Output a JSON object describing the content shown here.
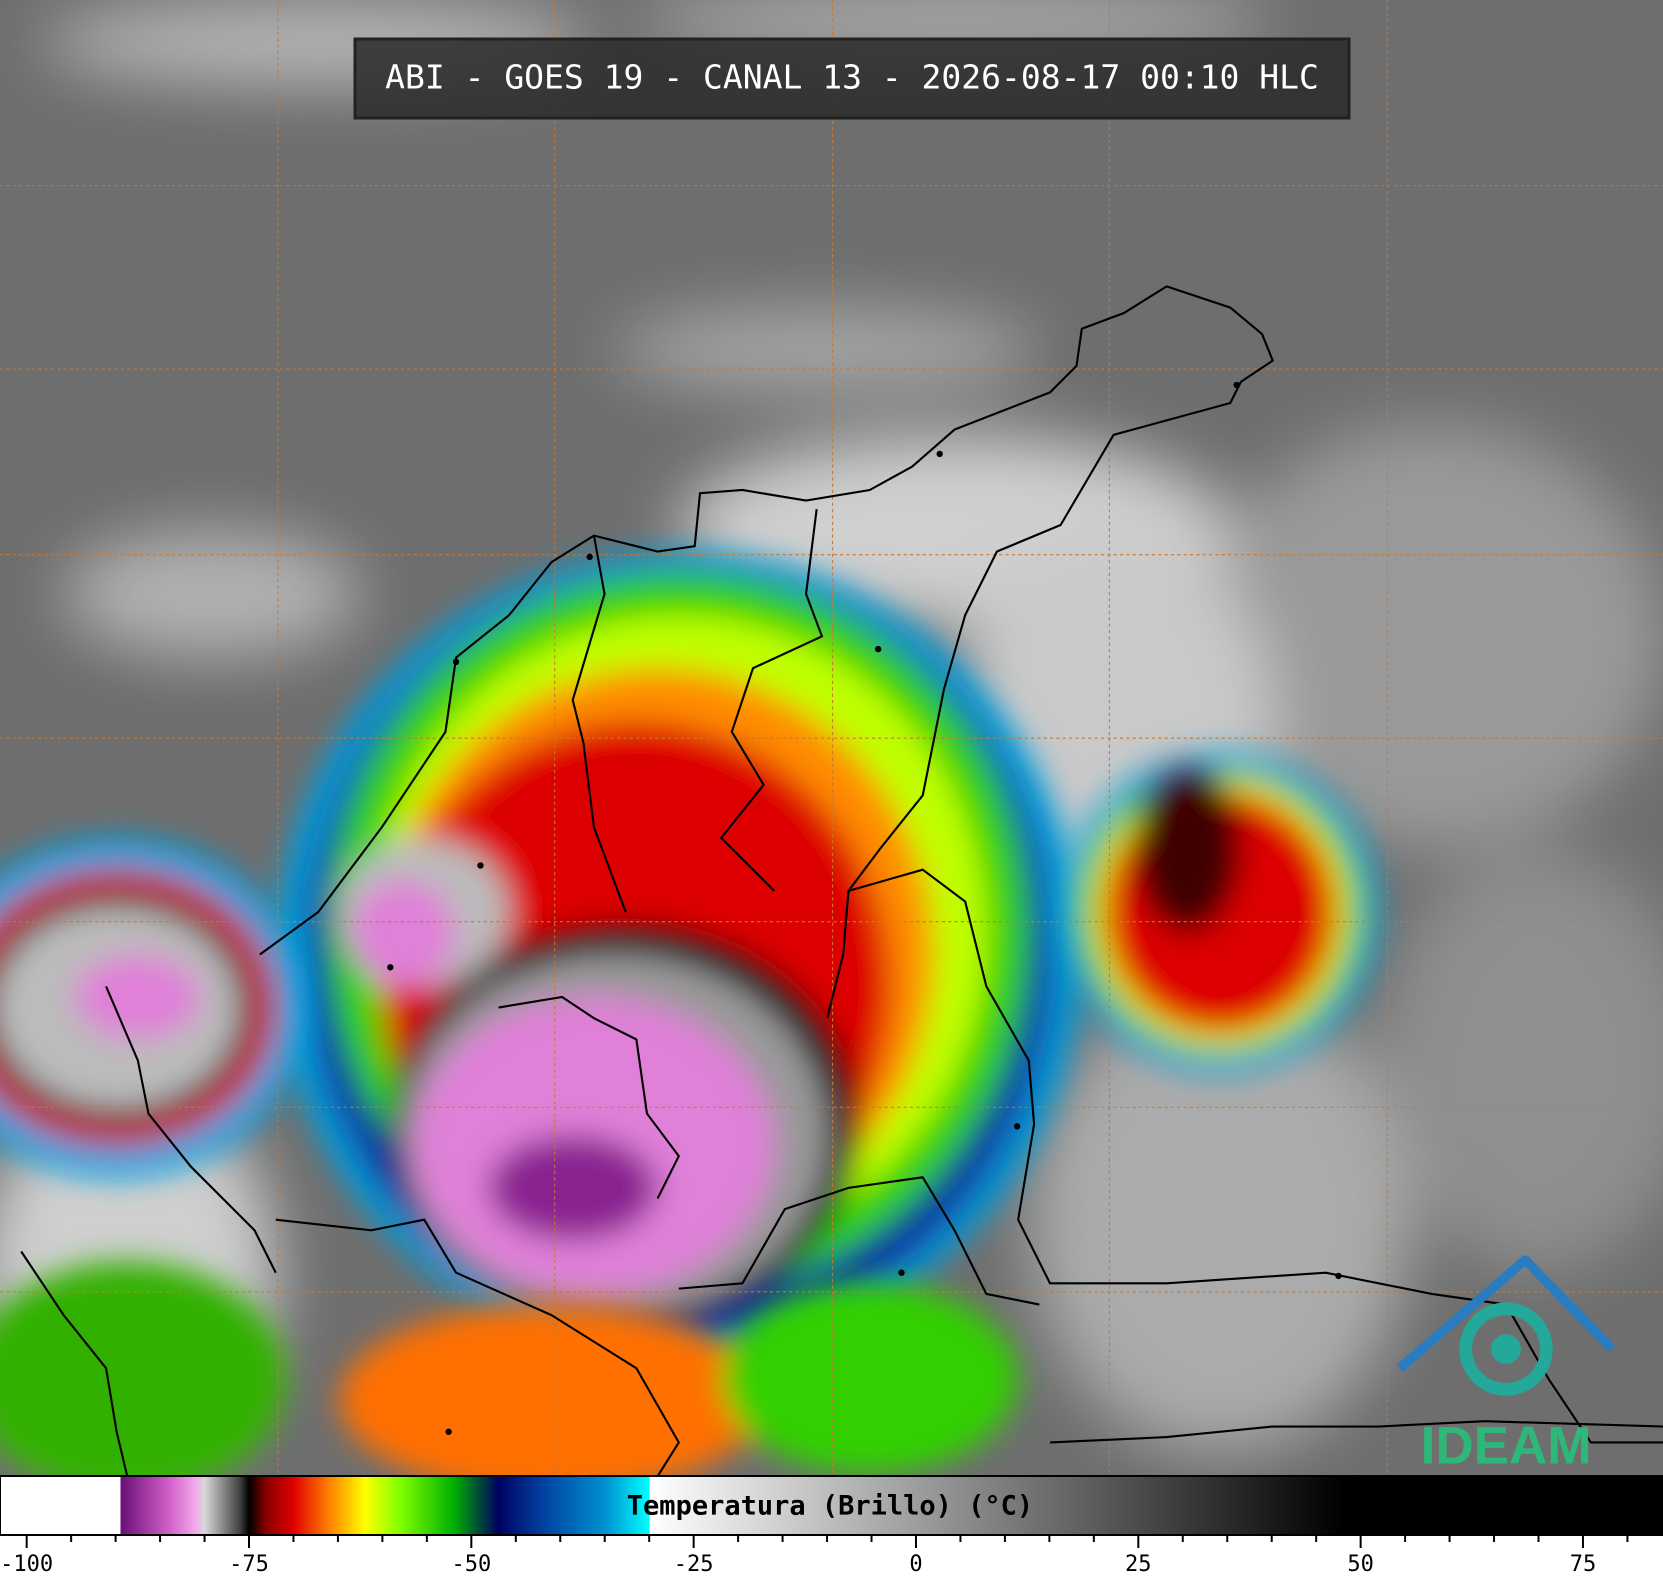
{
  "header": {
    "title": "ABI - GOES 19 - CANAL 13 - 2026-08-17 00:10 HLC"
  },
  "logo": {
    "text": "IDEAM"
  },
  "colorbar": {
    "label": "Temperatura (Brillo) (°C)",
    "lim": [
      -103,
      84
    ],
    "ticks": [
      -100,
      -75,
      -50,
      -25,
      0,
      25,
      50,
      75
    ],
    "minor_ticks": [
      -95,
      -90,
      -85,
      -80,
      -70,
      -65,
      -60,
      -55,
      -45,
      -40,
      -35,
      -30,
      -20,
      -15,
      -10,
      -5,
      5,
      10,
      15,
      20,
      30,
      35,
      40,
      45,
      55,
      60,
      65,
      70,
      80
    ],
    "stops": [
      {
        "value": -103,
        "color": "#ffffff"
      },
      {
        "value": -89.5,
        "color": "#ffffff"
      },
      {
        "value": -89.4,
        "color": "#6a1078"
      },
      {
        "value": -84,
        "color": "#d060c8"
      },
      {
        "value": -81,
        "color": "#f4a8ec"
      },
      {
        "value": -80,
        "color": "#d8d8d8"
      },
      {
        "value": -76,
        "color": "#404040"
      },
      {
        "value": -75,
        "color": "#000000"
      },
      {
        "value": -73,
        "color": "#8b0000"
      },
      {
        "value": -70,
        "color": "#e00000"
      },
      {
        "value": -66,
        "color": "#ff8000"
      },
      {
        "value": -62,
        "color": "#ffff00"
      },
      {
        "value": -58,
        "color": "#80ff00"
      },
      {
        "value": -52,
        "color": "#00b000"
      },
      {
        "value": -47,
        "color": "#000060"
      },
      {
        "value": -42,
        "color": "#0040a0"
      },
      {
        "value": -35,
        "color": "#0090d0"
      },
      {
        "value": -30,
        "color": "#00ffff"
      },
      {
        "value": -29.9,
        "color": "#ffffff"
      },
      {
        "value": 48,
        "color": "#000000"
      },
      {
        "value": 84,
        "color": "#000000"
      }
    ]
  }
}
